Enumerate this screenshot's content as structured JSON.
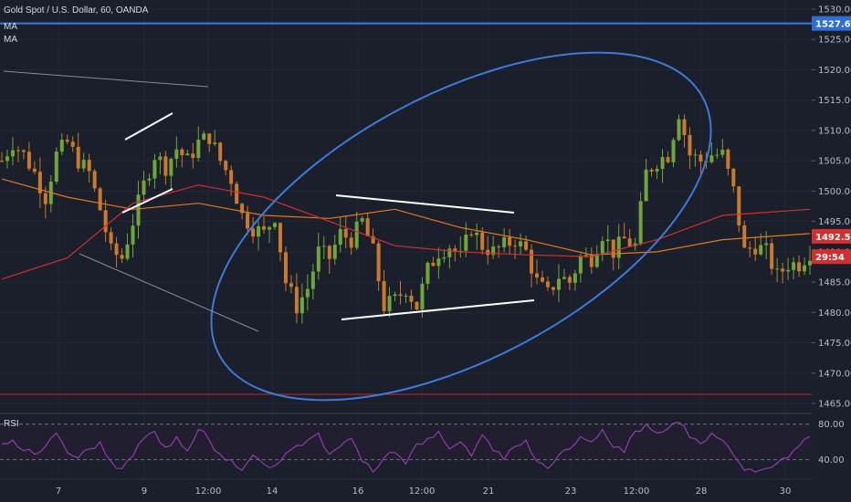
{
  "header": {
    "symbol_title": "Gold Spot / U.S. Dollar, 60, OANDA",
    "ma_labels": [
      "MA",
      "MA"
    ],
    "rsi_label": "RSI"
  },
  "colors": {
    "background": "#1b1e2b",
    "up_candle": "#6fa63a",
    "down_candle": "#c97a2a",
    "ma_fast": "#e07a1f",
    "ma_slow": "#d03030",
    "rsi_line": "#8e3fa8",
    "ellipse": "#3d7bd9",
    "horizontal_line": "#3d7bd9",
    "support_line": "#b02828",
    "drawing_lines": "#ffffff",
    "grey_lines": "#8a8d97",
    "price_badge": "#d62e2e",
    "blue_badge": "#2f6fd0"
  },
  "chart_data": {
    "type": "candlestick",
    "title": "Gold Spot / U.S. Dollar, 60, OANDA",
    "timeframe": "60",
    "y_axis": {
      "ticks": [
        "1530.000",
        "1525.000",
        "1520.000",
        "1515.000",
        "1510.000",
        "1505.000",
        "1500.000",
        "1495.000",
        "1490.000",
        "1485.000",
        "1480.000",
        "1475.000",
        "1470.000",
        "1465.000"
      ],
      "range": [
        1463.5,
        1531.5
      ]
    },
    "x_axis": {
      "ticks": [
        "7",
        "9",
        "12:00",
        "14",
        "16",
        "12:00",
        "21",
        "23",
        "12:00",
        "28",
        "30"
      ]
    },
    "price_path": [
      [
        0,
        1505
      ],
      [
        1,
        1508
      ],
      [
        2,
        1506
      ],
      [
        3,
        1503
      ],
      [
        4,
        1499
      ],
      [
        5,
        1506
      ],
      [
        6,
        1508
      ],
      [
        7,
        1505
      ],
      [
        8,
        1503
      ],
      [
        9,
        1497
      ],
      [
        10,
        1490
      ],
      [
        11,
        1489
      ],
      [
        12,
        1495
      ],
      [
        13,
        1501
      ],
      [
        14,
        1506
      ],
      [
        15,
        1504
      ],
      [
        16,
        1507
      ],
      [
        17,
        1505
      ],
      [
        18,
        1508
      ],
      [
        19,
        1509
      ],
      [
        20,
        1505
      ],
      [
        21,
        1502
      ],
      [
        22,
        1496
      ],
      [
        23,
        1494
      ],
      [
        24,
        1493
      ],
      [
        25,
        1496
      ],
      [
        26,
        1485
      ],
      [
        27,
        1481
      ],
      [
        28,
        1484
      ],
      [
        29,
        1490
      ],
      [
        30,
        1489
      ],
      [
        31,
        1493
      ],
      [
        32,
        1492
      ],
      [
        33,
        1495
      ],
      [
        34,
        1490
      ],
      [
        35,
        1481
      ],
      [
        36,
        1482
      ],
      [
        37,
        1484
      ],
      [
        38,
        1481
      ],
      [
        39,
        1487
      ],
      [
        40,
        1490
      ],
      [
        41,
        1491
      ],
      [
        42,
        1489
      ],
      [
        43,
        1494
      ],
      [
        44,
        1491
      ],
      [
        45,
        1490
      ],
      [
        46,
        1491
      ],
      [
        47,
        1492
      ],
      [
        48,
        1490
      ],
      [
        49,
        1485
      ],
      [
        50,
        1483
      ],
      [
        51,
        1486
      ],
      [
        52,
        1485
      ],
      [
        53,
        1489
      ],
      [
        54,
        1489
      ],
      [
        55,
        1493
      ],
      [
        56,
        1490
      ],
      [
        57,
        1492
      ],
      [
        58,
        1491
      ],
      [
        59,
        1503
      ],
      [
        60,
        1505
      ],
      [
        61,
        1506
      ],
      [
        62,
        1513
      ],
      [
        63,
        1506
      ],
      [
        64,
        1505
      ],
      [
        65,
        1506
      ],
      [
        66,
        1506
      ],
      [
        67,
        1500
      ],
      [
        68,
        1490
      ],
      [
        69,
        1491
      ],
      [
        70,
        1490
      ],
      [
        71,
        1486
      ],
      [
        72,
        1488
      ],
      [
        73,
        1488
      ],
      [
        74,
        1490
      ]
    ],
    "ma_fast": [
      [
        0,
        1502
      ],
      [
        6,
        1499
      ],
      [
        12,
        1497
      ],
      [
        18,
        1498
      ],
      [
        24,
        1496
      ],
      [
        30,
        1495.5
      ],
      [
        36,
        1497
      ],
      [
        42,
        1494
      ],
      [
        48,
        1492
      ],
      [
        54,
        1489.5
      ],
      [
        60,
        1490
      ],
      [
        66,
        1492
      ],
      [
        74,
        1493
      ]
    ],
    "ma_slow": [
      [
        0,
        1485.5
      ],
      [
        6,
        1489
      ],
      [
        12,
        1498
      ],
      [
        18,
        1501
      ],
      [
        24,
        1499
      ],
      [
        30,
        1495
      ],
      [
        36,
        1491
      ],
      [
        42,
        1490
      ],
      [
        48,
        1489.5
      ],
      [
        54,
        1489.2
      ],
      [
        60,
        1492
      ],
      [
        66,
        1496
      ],
      [
        74,
        1497
      ]
    ],
    "horizontal_lines": [
      {
        "price": 1527.642,
        "label": "1527.642",
        "color": "blue"
      },
      {
        "price": 1466.5,
        "label": "",
        "color": "red"
      }
    ],
    "price_badges": [
      {
        "label": "1492.546",
        "price": 1492.546
      },
      {
        "label": "29:54",
        "price": 1489.2
      }
    ],
    "rsi": {
      "levels": [
        80,
        40
      ],
      "tick_labels": [
        "80.00",
        "40.00"
      ],
      "range": [
        20,
        90
      ],
      "values": [
        58,
        62,
        50,
        46,
        55,
        70,
        48,
        42,
        52,
        60,
        38,
        30,
        44,
        64,
        72,
        54,
        66,
        50,
        74,
        62,
        46,
        40,
        28,
        45,
        35,
        33,
        47,
        56,
        62,
        70,
        46,
        55,
        64,
        38,
        26,
        42,
        48,
        35,
        58,
        64,
        72,
        52,
        60,
        44,
        68,
        50,
        40,
        55,
        62,
        38,
        30,
        45,
        52,
        66,
        60,
        74,
        54,
        48,
        72,
        80,
        70,
        75,
        82,
        65,
        58,
        70,
        62,
        45,
        28,
        26,
        30,
        36,
        42,
        55,
        66
      ]
    }
  }
}
